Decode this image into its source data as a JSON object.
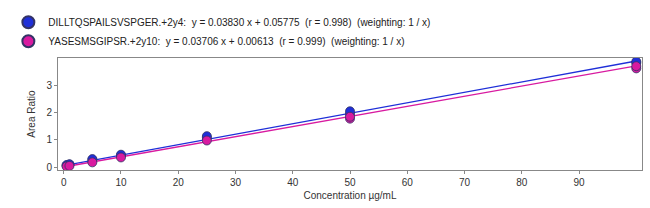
{
  "chart_data": {
    "type": "scatter",
    "x_label": "Concentration µg/mL",
    "y_label": "Area Ratio",
    "xlim": [
      -1,
      101
    ],
    "xticks": [
      0,
      10,
      20,
      30,
      40,
      50,
      60,
      70,
      80,
      90
    ],
    "ylim": [
      -0.1,
      4.0
    ],
    "yticks": [
      0,
      1,
      2,
      3
    ],
    "grid": false,
    "legend": "top left",
    "series": [
      {
        "name": "DILLTQSPAILSVSPGER.+2y4:  y = 0.03830 x + 0.05775  (r = 0.998)  (weighting: 1 / x)",
        "color": "#1f2fd8",
        "marker": "circle",
        "x": [
          0.5,
          0.5,
          1,
          1,
          5,
          5,
          10,
          10,
          25,
          25,
          50,
          50,
          100,
          100
        ],
        "values": [
          0.07,
          0.08,
          0.1,
          0.11,
          0.27,
          0.3,
          0.43,
          0.46,
          1.08,
          1.14,
          1.95,
          2.05,
          3.82,
          3.87
        ],
        "fit": {
          "x": [
            0,
            100
          ],
          "values": [
            0.06,
            3.89
          ]
        }
      },
      {
        "name": "YASESMSGIPSR.+2y10:  y = 0.03706 x + 0.00613  (r = 0.999)  (weighting: 1 / x)",
        "color": "#d81aa0",
        "marker": "circle",
        "x": [
          0.5,
          1,
          5,
          10,
          25,
          50,
          50,
          100,
          100
        ],
        "values": [
          0.03,
          0.05,
          0.18,
          0.36,
          0.98,
          1.78,
          1.85,
          3.62,
          3.7
        ],
        "fit": {
          "x": [
            0,
            100
          ],
          "values": [
            0.01,
            3.71
          ]
        }
      }
    ]
  }
}
